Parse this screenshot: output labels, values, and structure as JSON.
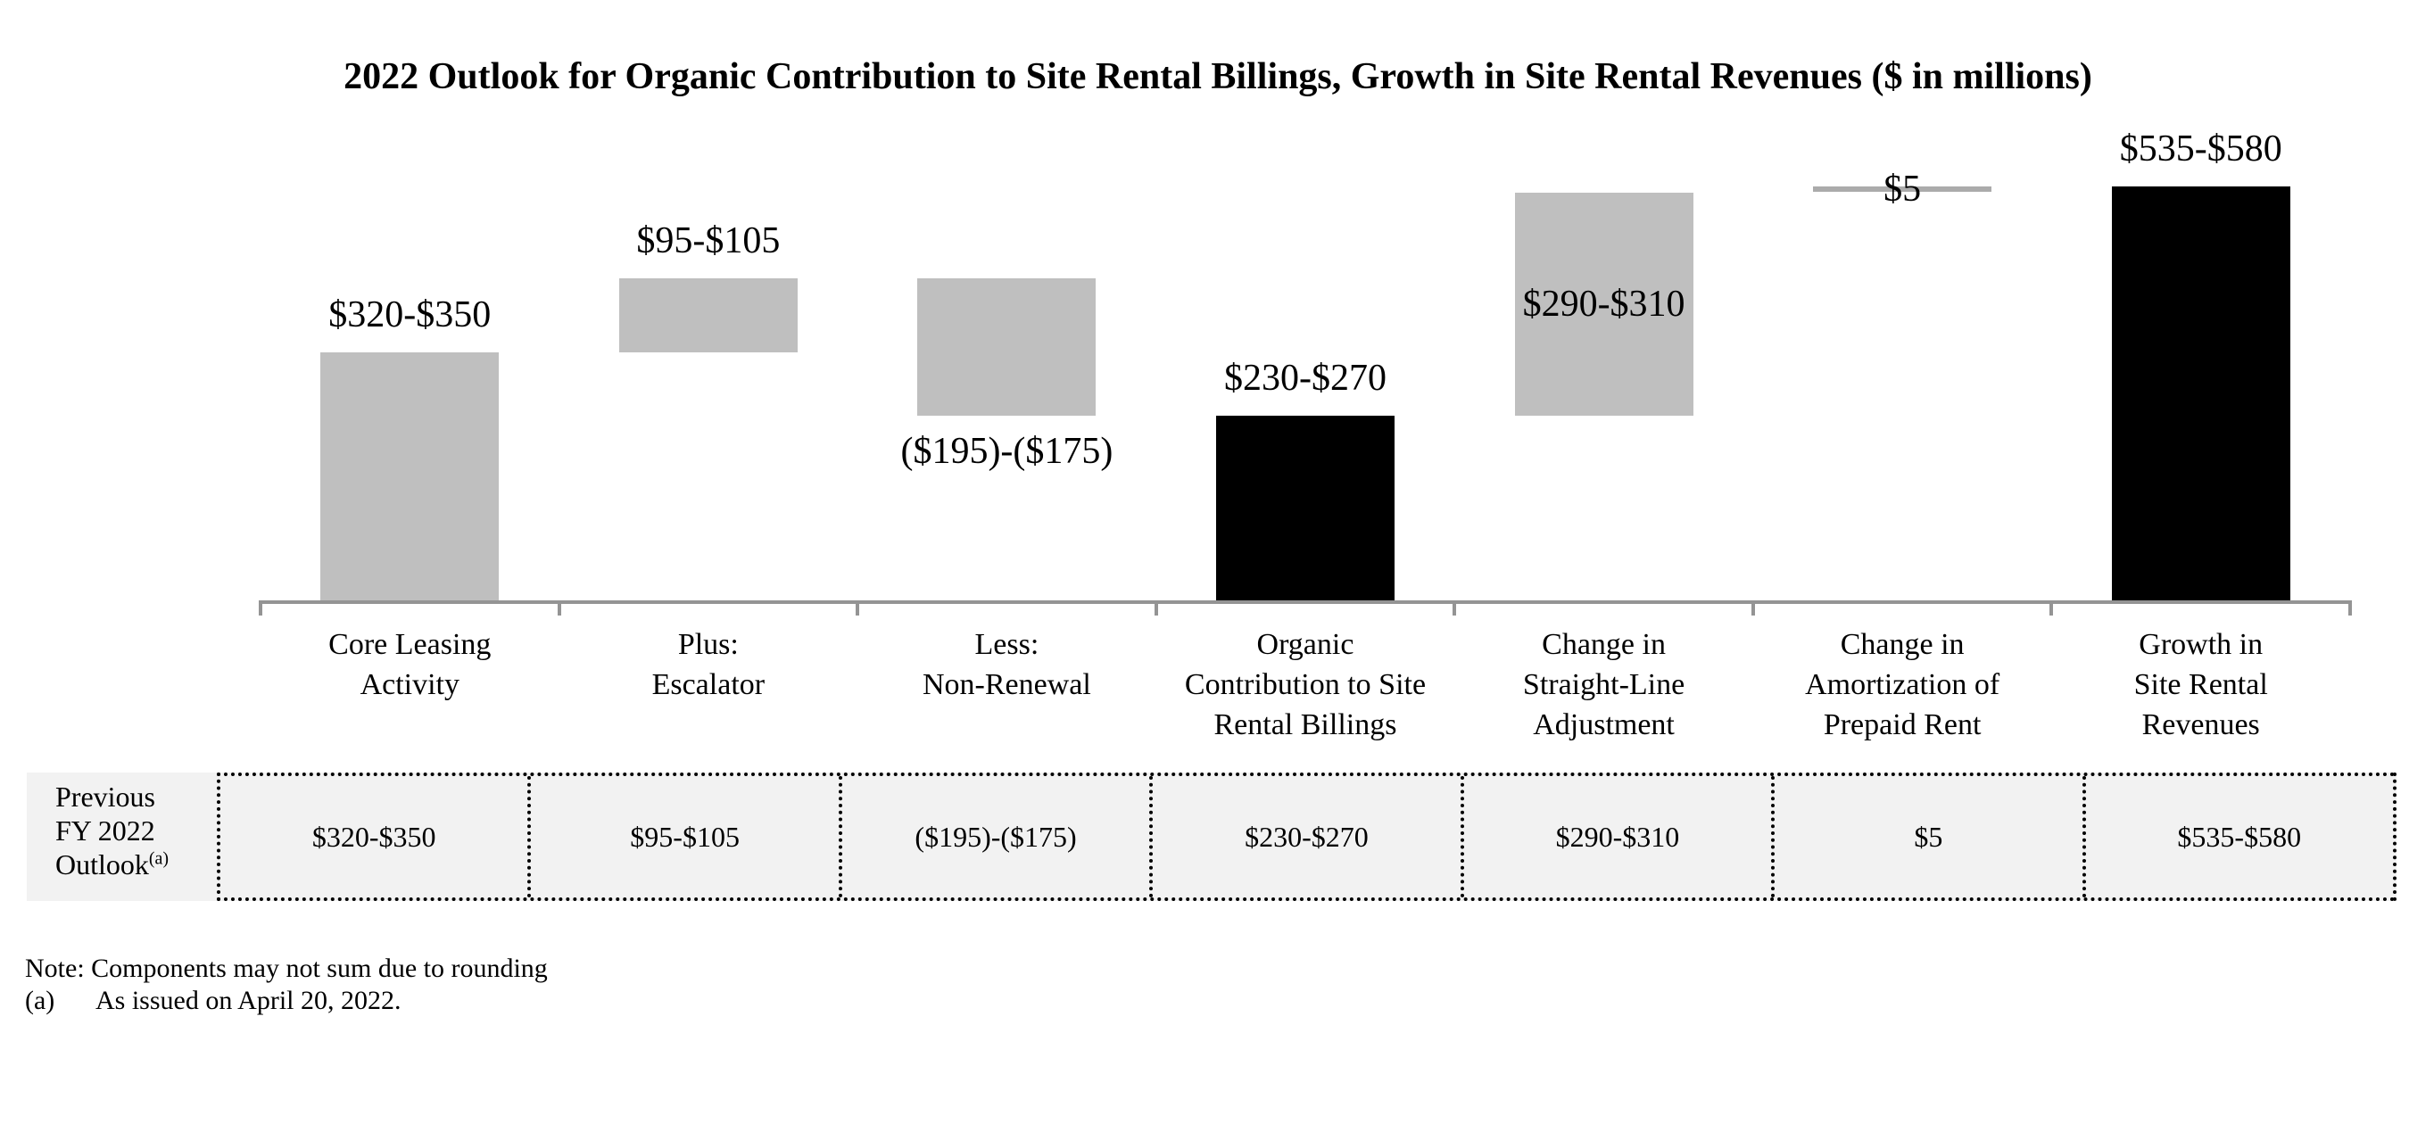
{
  "chart_data": {
    "type": "bar",
    "subtype": "waterfall",
    "title": "2022 Outlook for Organic Contribution to Site Rental Billings, Growth in Site Rental Revenues ($ in millions)",
    "unit": "$ in millions",
    "ylim": [
      0,
      600
    ],
    "grid": false,
    "legend": "none",
    "bars": [
      {
        "name": "core-leasing-activity",
        "label_lines": [
          "Core Leasing",
          "Activity"
        ],
        "value_label": "$320-$350",
        "range_low": 320,
        "range_high": 350,
        "start": 0,
        "end": 335,
        "style": "gray",
        "value_label_position": "above"
      },
      {
        "name": "escalator",
        "label_lines": [
          "Plus:",
          "Escalator"
        ],
        "value_label": "$95-$105",
        "range_low": 95,
        "range_high": 105,
        "start": 335,
        "end": 435,
        "style": "gray",
        "value_label_position": "above"
      },
      {
        "name": "non-renewal",
        "label_lines": [
          "Less:",
          "Non-Renewal"
        ],
        "value_label": "($195)-($175)",
        "range_low": -195,
        "range_high": -175,
        "start": 435,
        "end": 250,
        "style": "gray",
        "value_label_position": "below"
      },
      {
        "name": "organic-contribution-to-site-rental-billings",
        "label_lines": [
          "Organic",
          "Contribution to Site",
          "Rental Billings"
        ],
        "value_label": "$230-$270",
        "range_low": 230,
        "range_high": 270,
        "start": 0,
        "end": 250,
        "style": "black",
        "value_label_position": "above"
      },
      {
        "name": "change-in-straight-line-adjustment",
        "label_lines": [
          "Change in",
          "Straight-Line",
          "Adjustment"
        ],
        "value_label": "$290-$310",
        "range_low": 290,
        "range_high": 310,
        "start": 250,
        "end": 550,
        "style": "gray",
        "value_label_position": "inside"
      },
      {
        "name": "change-in-amortization-of-prepaid-rent",
        "label_lines": [
          "Change in",
          "Amortization of",
          "Prepaid Rent"
        ],
        "value_label": "$5",
        "range_low": 5,
        "range_high": 5,
        "start": 550,
        "end": 555,
        "style": "line",
        "value_label_position": "on"
      },
      {
        "name": "growth-in-site-rental-revenues",
        "label_lines": [
          "Growth in",
          "Site Rental",
          "Revenues"
        ],
        "value_label": "$535-$580",
        "range_low": 535,
        "range_high": 580,
        "start": 0,
        "end": 557.5,
        "style": "black",
        "value_label_position": "above"
      }
    ]
  },
  "table": {
    "header_lines": [
      "Previous",
      "FY 2022",
      "Outlook"
    ],
    "footnote_marker": "(a)",
    "values": [
      "$320-$350",
      "$95-$105",
      "($195)-($175)",
      "$230-$270",
      "$290-$310",
      "$5",
      "$535-$580"
    ]
  },
  "notes": {
    "line1": "Note: Components may not sum due to rounding",
    "line2_marker": "(a)",
    "line2_text": "As issued on April 20, 2022."
  },
  "colors": {
    "bar_gray": "#BFBFBF",
    "bar_black": "#000000",
    "connector_line_gray": "#ABABAB",
    "axis_gray": "#949494",
    "table_background": "#F2F2F2",
    "border_black": "#000000"
  }
}
